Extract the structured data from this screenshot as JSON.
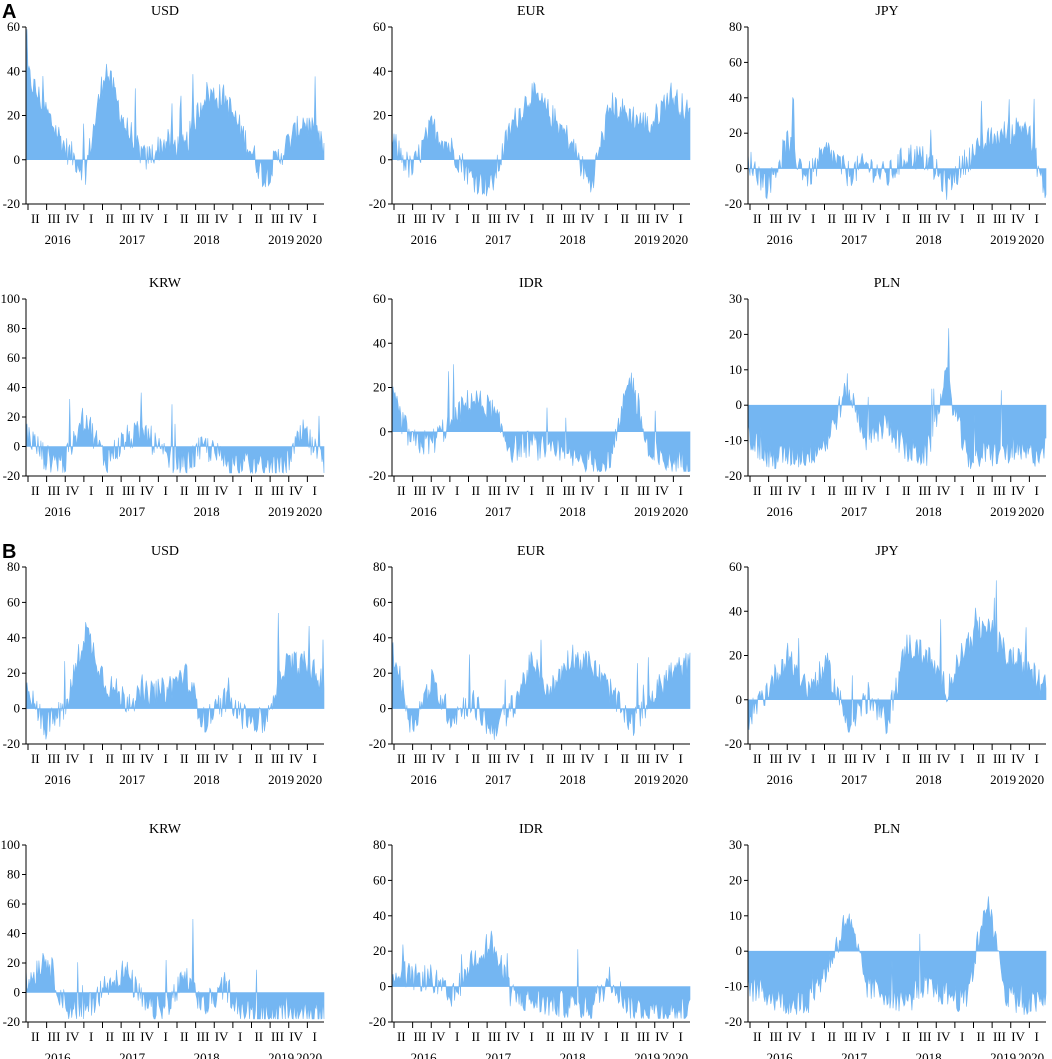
{
  "colors": {
    "fill": "#74b6f2",
    "axis": "#000000"
  },
  "panels": [
    {
      "label": "A",
      "x_ticks": [
        "II",
        "III",
        "IV",
        "I",
        "II",
        "III",
        "IV",
        "I",
        "II",
        "III",
        "IV",
        "I",
        "II",
        "III",
        "IV",
        "I"
      ],
      "x_years": [
        "2016",
        "2017",
        "2018",
        "2019",
        "2020"
      ]
    },
    {
      "label": "B",
      "x_ticks": [
        "II",
        "III",
        "IV",
        "I",
        "II",
        "III",
        "IV",
        "I",
        "II",
        "III",
        "IV",
        "I",
        "II",
        "III",
        "IV",
        "I"
      ],
      "x_years": [
        "2016",
        "2017",
        "2018",
        "2019",
        "2020"
      ]
    }
  ],
  "chart_data": [
    {
      "panel": "A",
      "title": "USD",
      "type": "area",
      "yticks": [
        -20,
        0,
        20,
        40,
        60
      ],
      "ylim": [
        -20,
        60
      ],
      "series": [
        {
          "x": [
            "2016-Q2",
            "2016-Q3",
            "2016-Q4",
            "2017-Q1",
            "2017-Q2",
            "2017-Q3",
            "2017-Q4",
            "2018-Q1",
            "2018-Q2",
            "2018-Q3",
            "2018-Q4",
            "2019-Q1",
            "2019-Q2",
            "2019-Q3",
            "2019-Q4",
            "2020-Q1"
          ],
          "values": [
            40,
            22,
            5,
            -5,
            42,
            15,
            0,
            8,
            5,
            30,
            28,
            10,
            -8,
            5,
            18,
            5
          ]
        }
      ]
    },
    {
      "panel": "A",
      "title": "EUR",
      "type": "area",
      "yticks": [
        -20,
        0,
        20,
        40,
        60
      ],
      "ylim": [
        -20,
        60
      ],
      "series": [
        {
          "x": [
            "2016-Q2",
            "2016-Q3",
            "2016-Q4",
            "2017-Q1",
            "2017-Q2",
            "2017-Q3",
            "2017-Q4",
            "2018-Q1",
            "2018-Q2",
            "2018-Q3",
            "2018-Q4",
            "2019-Q1",
            "2019-Q2",
            "2019-Q3",
            "2019-Q4",
            "2020-Q1"
          ],
          "values": [
            8,
            -5,
            15,
            5,
            -8,
            -12,
            15,
            30,
            20,
            8,
            -12,
            25,
            20,
            15,
            30,
            20
          ]
        }
      ]
    },
    {
      "panel": "A",
      "title": "JPY",
      "type": "area",
      "yticks": [
        -20,
        0,
        20,
        40,
        60,
        80
      ],
      "ylim": [
        -20,
        80
      ],
      "series": [
        {
          "x": [
            "2016-Q2",
            "2016-Q3",
            "2016-Q4",
            "2017-Q1",
            "2017-Q2",
            "2017-Q3",
            "2017-Q4",
            "2018-Q1",
            "2018-Q2",
            "2018-Q3",
            "2018-Q4",
            "2019-Q1",
            "2019-Q2",
            "2019-Q3",
            "2019-Q4",
            "2020-Q1"
          ],
          "values": [
            5,
            -10,
            15,
            -5,
            10,
            -3,
            2,
            -5,
            8,
            5,
            -10,
            5,
            15,
            20,
            25,
            -15
          ]
        }
      ]
    },
    {
      "panel": "A",
      "title": "KRW",
      "type": "area",
      "yticks": [
        -20,
        0,
        20,
        40,
        60,
        80,
        100
      ],
      "ylim": [
        -20,
        100
      ],
      "series": [
        {
          "x": [
            "2016-Q2",
            "2016-Q3",
            "2016-Q4",
            "2017-Q1",
            "2017-Q2",
            "2017-Q3",
            "2017-Q4",
            "2018-Q1",
            "2018-Q2",
            "2018-Q3",
            "2018-Q4",
            "2019-Q1",
            "2019-Q2",
            "2019-Q3",
            "2019-Q4",
            "2020-Q1"
          ],
          "values": [
            10,
            -8,
            -10,
            20,
            -10,
            5,
            10,
            -8,
            -12,
            0,
            -10,
            -12,
            -15,
            -14,
            10,
            -15
          ]
        }
      ]
    },
    {
      "panel": "A",
      "title": "IDR",
      "type": "area",
      "yticks": [
        -20,
        0,
        20,
        40,
        60
      ],
      "ylim": [
        -20,
        60
      ],
      "series": [
        {
          "x": [
            "2016-Q2",
            "2016-Q3",
            "2016-Q4",
            "2017-Q1",
            "2017-Q2",
            "2017-Q3",
            "2017-Q4",
            "2018-Q1",
            "2018-Q2",
            "2018-Q3",
            "2018-Q4",
            "2019-Q1",
            "2019-Q2",
            "2019-Q3",
            "2019-Q4",
            "2020-Q1"
          ],
          "values": [
            15,
            -5,
            -5,
            5,
            15,
            10,
            -8,
            -5,
            -10,
            -12,
            -14,
            -15,
            25,
            -12,
            -14,
            -12
          ]
        }
      ]
    },
    {
      "panel": "A",
      "title": "PLN",
      "type": "area",
      "yticks": [
        -20,
        -10,
        0,
        10,
        20,
        30
      ],
      "ylim": [
        -20,
        30
      ],
      "series": [
        {
          "x": [
            "2016-Q2",
            "2016-Q3",
            "2016-Q4",
            "2017-Q1",
            "2017-Q2",
            "2017-Q3",
            "2017-Q4",
            "2018-Q1",
            "2018-Q2",
            "2018-Q3",
            "2018-Q4",
            "2019-Q1",
            "2019-Q2",
            "2019-Q3",
            "2019-Q4",
            "2020-Q1"
          ],
          "values": [
            -8,
            -15,
            -14,
            -14,
            -10,
            5,
            -10,
            -5,
            -13,
            -14,
            8,
            -15,
            -14,
            -13,
            -14,
            -13
          ]
        }
      ]
    },
    {
      "panel": "B",
      "title": "USD",
      "type": "area",
      "yticks": [
        -20,
        0,
        20,
        40,
        60,
        80
      ],
      "ylim": [
        -20,
        80
      ],
      "series": [
        {
          "x": [
            "2016-Q2",
            "2016-Q3",
            "2016-Q4",
            "2017-Q1",
            "2017-Q2",
            "2017-Q3",
            "2017-Q4",
            "2018-Q1",
            "2018-Q2",
            "2018-Q3",
            "2018-Q4",
            "2019-Q1",
            "2019-Q2",
            "2019-Q3",
            "2019-Q4",
            "2020-Q1"
          ],
          "values": [
            10,
            -10,
            0,
            45,
            15,
            5,
            8,
            10,
            20,
            -8,
            5,
            -5,
            -8,
            25,
            25,
            15
          ]
        }
      ]
    },
    {
      "panel": "B",
      "title": "EUR",
      "type": "area",
      "yticks": [
        -20,
        0,
        20,
        40,
        60,
        80
      ],
      "ylim": [
        -20,
        80
      ],
      "series": [
        {
          "x": [
            "2016-Q2",
            "2016-Q3",
            "2016-Q4",
            "2017-Q1",
            "2017-Q2",
            "2017-Q3",
            "2017-Q4",
            "2018-Q1",
            "2018-Q2",
            "2018-Q3",
            "2018-Q4",
            "2019-Q1",
            "2019-Q2",
            "2019-Q3",
            "2019-Q4",
            "2020-Q1"
          ],
          "values": [
            35,
            -10,
            15,
            -5,
            5,
            -12,
            0,
            25,
            10,
            30,
            25,
            10,
            -10,
            5,
            20,
            25
          ]
        }
      ]
    },
    {
      "panel": "B",
      "title": "JPY",
      "type": "area",
      "yticks": [
        -20,
        0,
        20,
        40,
        60
      ],
      "ylim": [
        -20,
        60
      ],
      "series": [
        {
          "x": [
            "2016-Q2",
            "2016-Q3",
            "2016-Q4",
            "2017-Q1",
            "2017-Q2",
            "2017-Q3",
            "2017-Q4",
            "2018-Q1",
            "2018-Q2",
            "2018-Q3",
            "2018-Q4",
            "2019-Q1",
            "2019-Q2",
            "2019-Q3",
            "2019-Q4",
            "2020-Q1"
          ],
          "values": [
            -8,
            5,
            20,
            5,
            15,
            -10,
            0,
            -10,
            25,
            20,
            5,
            25,
            35,
            20,
            15,
            5
          ]
        }
      ]
    },
    {
      "panel": "B",
      "title": "KRW",
      "type": "area",
      "yticks": [
        -20,
        0,
        20,
        40,
        60,
        80,
        100
      ],
      "ylim": [
        -20,
        100
      ],
      "series": [
        {
          "x": [
            "2016-Q2",
            "2016-Q3",
            "2016-Q4",
            "2017-Q1",
            "2017-Q2",
            "2017-Q3",
            "2017-Q4",
            "2018-Q1",
            "2018-Q2",
            "2018-Q3",
            "2018-Q4",
            "2019-Q1",
            "2019-Q2",
            "2019-Q3",
            "2019-Q4",
            "2020-Q1"
          ],
          "values": [
            5,
            25,
            -10,
            -12,
            5,
            15,
            -10,
            -12,
            10,
            -10,
            5,
            -14,
            -15,
            -15,
            -14,
            -14
          ]
        }
      ]
    },
    {
      "panel": "B",
      "title": "IDR",
      "type": "area",
      "yticks": [
        -20,
        0,
        20,
        40,
        60,
        80
      ],
      "ylim": [
        -20,
        80
      ],
      "series": [
        {
          "x": [
            "2016-Q2",
            "2016-Q3",
            "2016-Q4",
            "2017-Q1",
            "2017-Q2",
            "2017-Q3",
            "2017-Q4",
            "2018-Q1",
            "2018-Q2",
            "2018-Q3",
            "2018-Q4",
            "2019-Q1",
            "2019-Q2",
            "2019-Q3",
            "2019-Q4",
            "2020-Q1"
          ],
          "values": [
            10,
            5,
            5,
            -8,
            15,
            25,
            -5,
            -8,
            -10,
            -10,
            -12,
            5,
            -12,
            -13,
            -14,
            -14
          ]
        }
      ]
    },
    {
      "panel": "B",
      "title": "PLN",
      "type": "area",
      "yticks": [
        -20,
        -10,
        0,
        10,
        20,
        30
      ],
      "ylim": [
        -20,
        30
      ],
      "series": [
        {
          "x": [
            "2016-Q2",
            "2016-Q3",
            "2016-Q4",
            "2017-Q1",
            "2017-Q2",
            "2017-Q3",
            "2017-Q4",
            "2018-Q1",
            "2018-Q2",
            "2018-Q3",
            "2018-Q4",
            "2019-Q1",
            "2019-Q2",
            "2019-Q3",
            "2019-Q4",
            "2020-Q1"
          ],
          "values": [
            -10,
            -12,
            -15,
            -14,
            -5,
            10,
            -10,
            -12,
            -14,
            -10,
            -12,
            -14,
            15,
            -12,
            -15,
            -14
          ]
        }
      ]
    }
  ]
}
